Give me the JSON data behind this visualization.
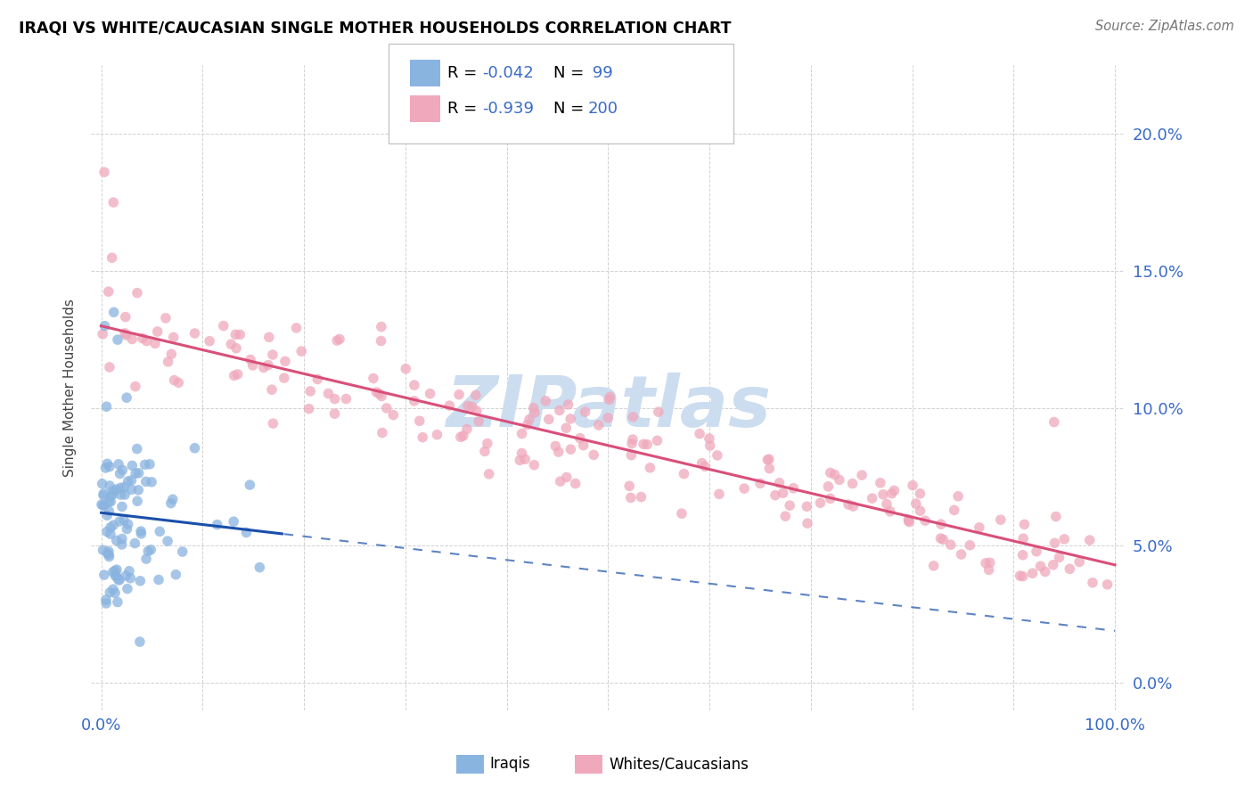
{
  "title": "IRAQI VS WHITE/CAUCASIAN SINGLE MOTHER HOUSEHOLDS CORRELATION CHART",
  "source": "Source: ZipAtlas.com",
  "ylabel": "Single Mother Households",
  "iraqi_color": "#8ab4e0",
  "white_color": "#f0a8bc",
  "iraqi_line_color": "#1a4faa",
  "white_line_color": "#d94f7a",
  "legend_r_iraqi": "-0.042",
  "legend_n_iraqi": "99",
  "legend_r_white": "-0.939",
  "legend_n_white": "200",
  "legend_color": "#3a6bc8",
  "watermark_text": "ZIPatlas",
  "watermark_color": "#ccddf0",
  "background_color": "#ffffff",
  "grid_color": "#cccccc",
  "ytick_vals": [
    0.0,
    0.05,
    0.1,
    0.15,
    0.2
  ],
  "ytick_labels": [
    "0.0%",
    "5.0%",
    "10.0%",
    "15.0%",
    "20.0%"
  ],
  "xtick_first": "0.0%",
  "xtick_last": "100.0%",
  "axis_color": "#3a6bc8"
}
